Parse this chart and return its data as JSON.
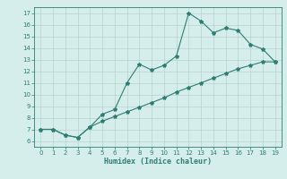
{
  "xlabel": "Humidex (Indice chaleur)",
  "xlim": [
    -0.5,
    19.5
  ],
  "ylim": [
    5.5,
    17.5
  ],
  "xticks": [
    0,
    1,
    2,
    3,
    4,
    5,
    6,
    7,
    8,
    9,
    10,
    11,
    12,
    13,
    14,
    15,
    16,
    17,
    18,
    19
  ],
  "yticks": [
    6,
    7,
    8,
    9,
    10,
    11,
    12,
    13,
    14,
    15,
    16,
    17
  ],
  "line1_x": [
    0,
    1,
    2,
    3,
    4,
    5,
    6,
    7,
    8,
    9,
    10,
    11,
    12,
    13,
    14,
    15,
    16,
    17,
    18,
    19
  ],
  "line1_y": [
    7.0,
    7.0,
    6.5,
    6.3,
    7.2,
    8.3,
    8.7,
    11.0,
    12.6,
    12.1,
    12.5,
    13.3,
    17.0,
    16.3,
    15.3,
    15.7,
    15.5,
    14.3,
    13.9,
    12.8
  ],
  "line2_x": [
    0,
    1,
    2,
    3,
    4,
    5,
    6,
    7,
    8,
    9,
    10,
    11,
    12,
    13,
    14,
    15,
    16,
    17,
    18,
    19
  ],
  "line2_y": [
    7.0,
    7.0,
    6.5,
    6.3,
    7.2,
    7.7,
    8.1,
    8.5,
    8.9,
    9.3,
    9.7,
    10.2,
    10.6,
    11.0,
    11.4,
    11.8,
    12.2,
    12.5,
    12.8,
    12.8
  ],
  "line_color": "#2e7d72",
  "bg_color": "#d5eeeb",
  "grid_color": "#b0ccc8",
  "font_color": "#2e7d72",
  "marker": "*",
  "linewidth": 0.8,
  "markersize": 3.0
}
